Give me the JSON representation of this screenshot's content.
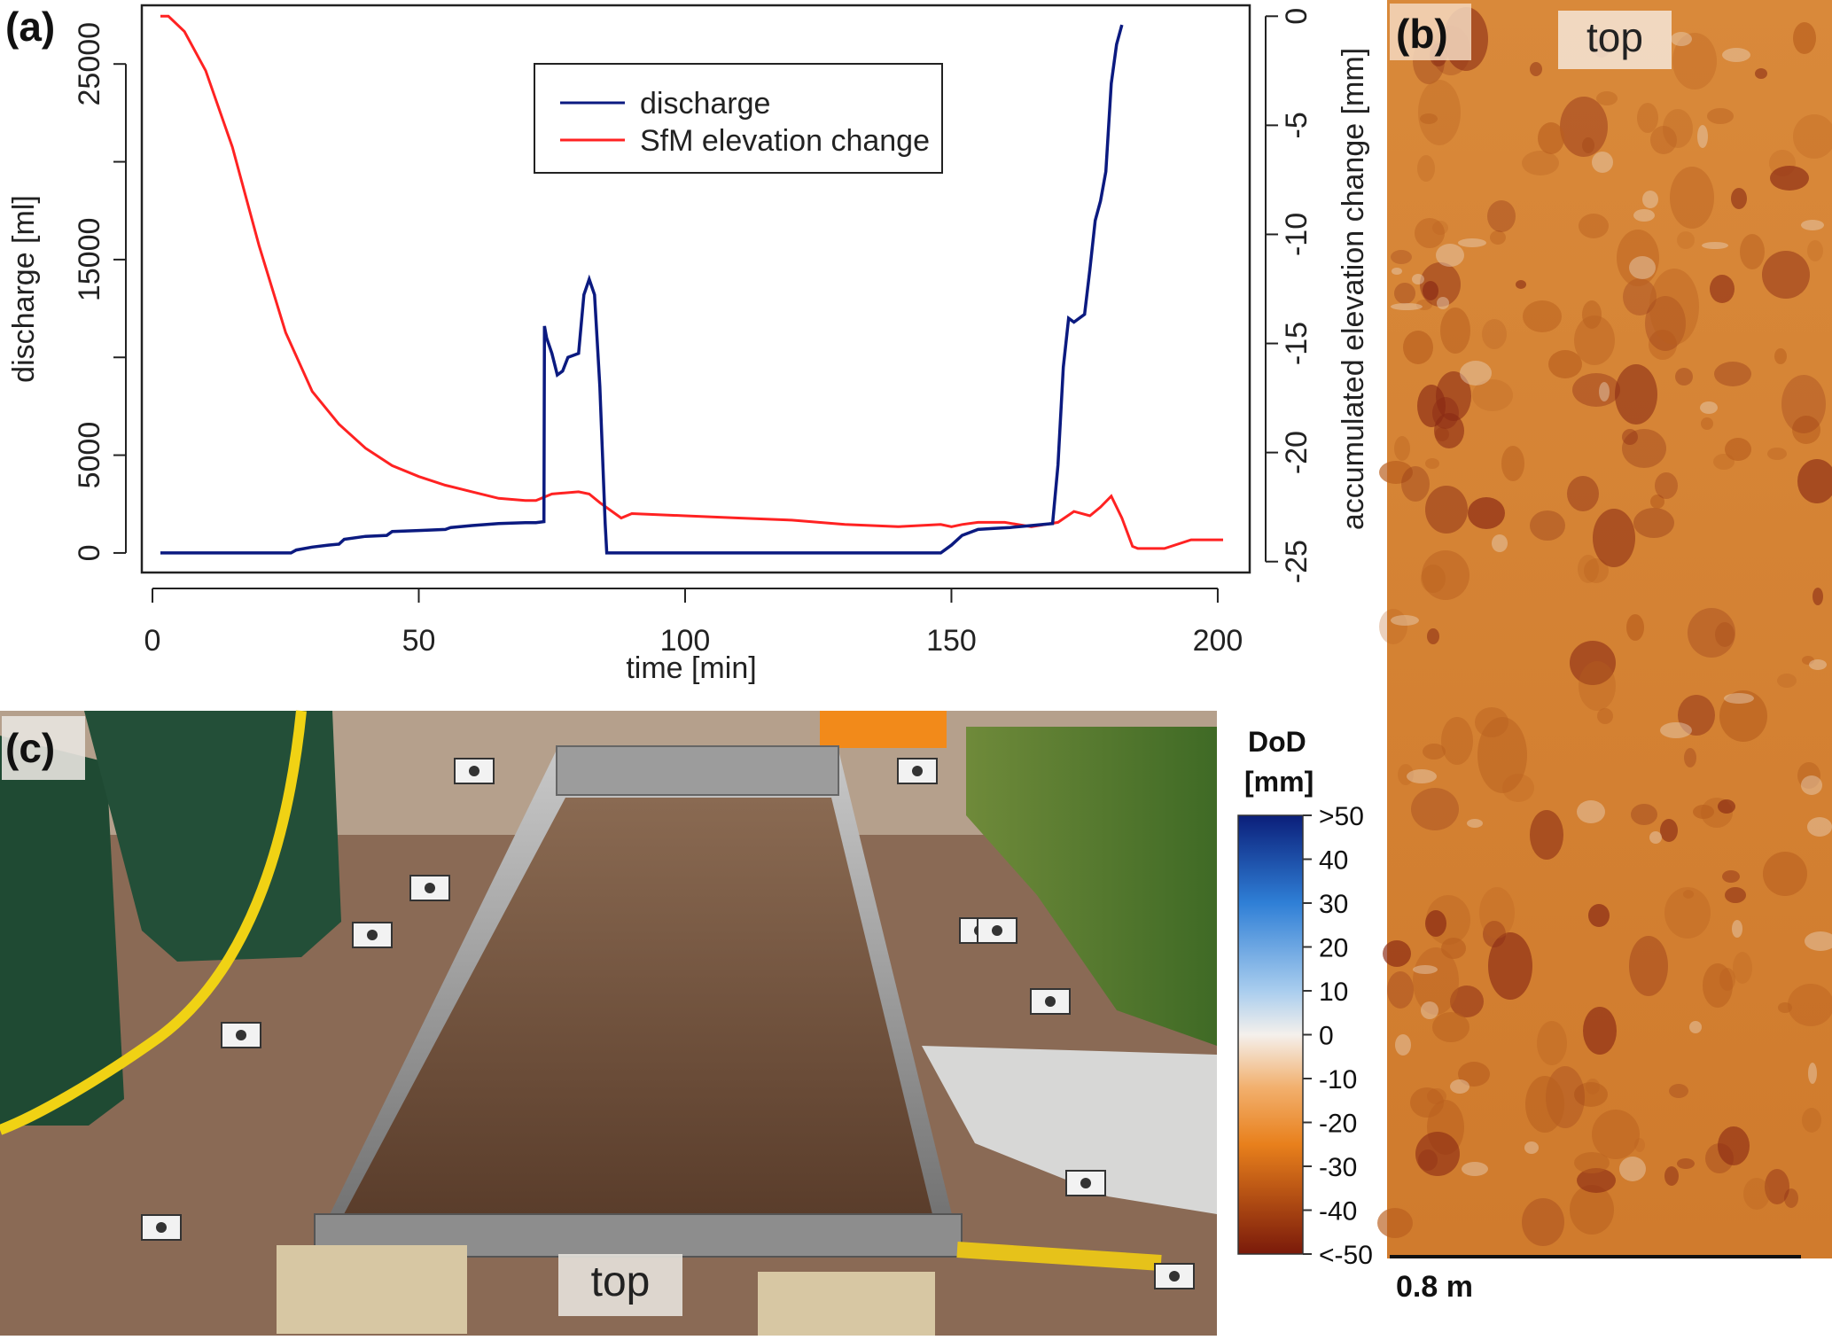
{
  "panels": {
    "a": {
      "label": "(a)"
    },
    "b": {
      "label": "(b)",
      "top_label": "top",
      "scale_label": "0.8 m"
    },
    "c": {
      "label": "(c)",
      "top_label": "top"
    }
  },
  "colorbar": {
    "title_line1": "DoD",
    "title_line2": "[mm]",
    "ticks": [
      ">50",
      "40",
      "30",
      "20",
      "10",
      "0",
      "-10",
      "-20",
      "-30",
      "-40",
      "<-50"
    ],
    "colors": {
      "high": "#0b1f7a",
      "mid_high": "#2f7fd6",
      "light_blue": "#a9cdee",
      "zero": "#f4f0ec",
      "light_orange": "#f2b06e",
      "orange": "#e8801c",
      "low": "#7a1a0a"
    }
  },
  "colors": {
    "discharge": "#0b1a80",
    "elevation": "#ff2222",
    "soil": "#6b4a35",
    "dem_base": "#d07a2e"
  },
  "chart_data": {
    "type": "line",
    "xlabel": "time [min]",
    "ylabel_left": "discharge [ml]",
    "ylabel_right": "accumulated elevation change [mm]",
    "xlim": [
      -2,
      206
    ],
    "xticks": [
      0,
      50,
      100,
      150,
      200
    ],
    "ylim_left": [
      -1000,
      28000
    ],
    "yticks_left": [
      0,
      5000,
      15000,
      25000
    ],
    "ylim_right": [
      -25.5,
      0.5
    ],
    "yticks_right": [
      0,
      -5,
      -10,
      -15,
      -20,
      -25
    ],
    "legend_position": "top-center",
    "series": [
      {
        "name": "discharge",
        "axis": "left",
        "x": [
          1.5,
          10,
          20,
          26,
          27,
          30,
          33,
          35,
          36,
          40,
          44,
          45,
          50,
          55,
          56,
          60,
          65,
          70,
          72,
          73.5,
          73.6,
          74,
          75,
          76,
          77,
          78,
          80,
          81,
          82,
          83,
          84,
          85,
          85.3,
          100,
          120,
          140,
          148,
          150,
          152,
          155,
          158,
          161,
          165,
          169,
          170,
          171,
          172,
          173,
          175,
          176,
          177,
          178,
          179,
          180,
          181,
          182
        ],
        "y": [
          0,
          0,
          0,
          0,
          150,
          300,
          400,
          450,
          700,
          850,
          900,
          1100,
          1150,
          1200,
          1300,
          1400,
          1500,
          1550,
          1550,
          1600,
          11600,
          11000,
          10200,
          9100,
          9300,
          10000,
          10200,
          13200,
          14000,
          13200,
          8500,
          1500,
          0,
          0,
          0,
          0,
          0,
          400,
          900,
          1200,
          1250,
          1300,
          1400,
          1500,
          4500,
          9500,
          12000,
          11800,
          12200,
          14500,
          17000,
          18000,
          19500,
          24000,
          26000,
          27000
        ]
      },
      {
        "name": "SfM elevation change",
        "axis": "right",
        "x": [
          1.5,
          3,
          6,
          10,
          15,
          20,
          25,
          30,
          35,
          40,
          45,
          50,
          55,
          60,
          65,
          70,
          72,
          75,
          80,
          82,
          84,
          88,
          90,
          100,
          110,
          120,
          130,
          140,
          148,
          150,
          152,
          155,
          160,
          165,
          170,
          173,
          176,
          178,
          180,
          182,
          184,
          185,
          190,
          195,
          200,
          201
        ],
        "y": [
          0,
          0,
          -0.7,
          -2.5,
          -6,
          -10.5,
          -14.5,
          -17.2,
          -18.7,
          -19.8,
          -20.6,
          -21.1,
          -21.5,
          -21.8,
          -22.1,
          -22.2,
          -22.2,
          -21.9,
          -21.8,
          -21.9,
          -22.3,
          -23.0,
          -22.8,
          -22.9,
          -23.0,
          -23.1,
          -23.3,
          -23.4,
          -23.3,
          -23.4,
          -23.3,
          -23.2,
          -23.2,
          -23.4,
          -23.2,
          -22.7,
          -22.9,
          -22.5,
          -22.0,
          -23.0,
          -24.3,
          -24.4,
          -24.4,
          -24.0,
          -24.0,
          -24.0
        ]
      }
    ]
  }
}
